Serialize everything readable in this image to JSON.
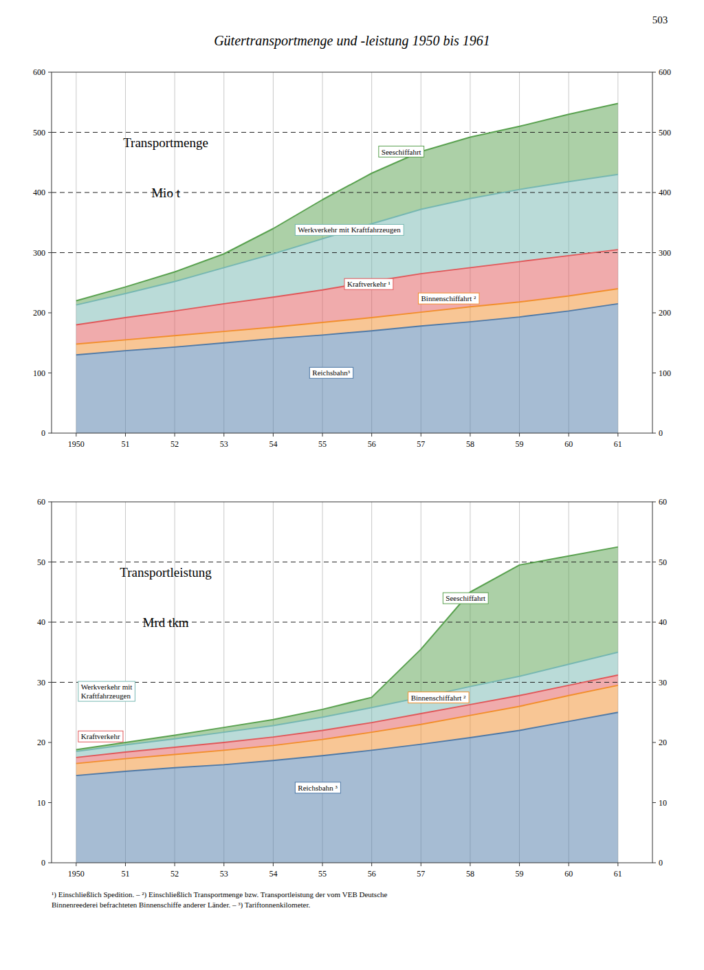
{
  "title": "Gütertransportmenge und -leistung 1950 bis 1961",
  "page_number": "503",
  "footnote": "¹) Einschließlich Spedition. – ²) Einschließlich Transportmenge bzw. Transportleistung der vom VEB Deutsche\nBinnenreederei befrachteten Binnenschiffe anderer Länder. – ³) Tariftonnenkilometer.",
  "chart_data": [
    {
      "type": "area",
      "annotations": [
        "Transportmenge",
        "Mio t"
      ],
      "x": [
        1950,
        1951,
        1952,
        1953,
        1954,
        1955,
        1956,
        1957,
        1958,
        1959,
        1960,
        1961
      ],
      "xlim": [
        1949.5,
        1961.7
      ],
      "xticks": [
        1950,
        {
          "value": 1951,
          "label": "51"
        },
        {
          "value": 1952,
          "label": "52"
        },
        {
          "value": 1953,
          "label": "53"
        },
        {
          "value": 1954,
          "label": "54"
        },
        {
          "value": 1955,
          "label": "55"
        },
        {
          "value": 1956,
          "label": "56"
        },
        {
          "value": 1957,
          "label": "57"
        },
        {
          "value": 1958,
          "label": "58"
        },
        {
          "value": 1959,
          "label": "59"
        },
        {
          "value": 1960,
          "label": "60"
        },
        {
          "value": 1961,
          "label": "61"
        }
      ],
      "ylim": [
        0,
        600
      ],
      "yticks": [
        0,
        100,
        200,
        300,
        400,
        500,
        600
      ],
      "reference_lines": [
        300,
        400,
        500
      ],
      "grid": "x",
      "series": [
        {
          "name": "Reichsbahn³",
          "values": [
            130,
            137,
            143,
            150,
            157,
            163,
            170,
            178,
            185,
            193,
            203,
            215
          ]
        },
        {
          "name": "Binnenschiffahrt ²",
          "values": [
            148,
            155,
            162,
            169,
            176,
            184,
            192,
            201,
            210,
            218,
            228,
            240
          ]
        },
        {
          "name": "Kraftverkehr ¹",
          "values": [
            180,
            192,
            203,
            215,
            226,
            238,
            252,
            265,
            275,
            285,
            295,
            305
          ]
        },
        {
          "name": "Werkverkehr mit Kraftfahrzeugen",
          "values": [
            213,
            232,
            252,
            275,
            298,
            323,
            348,
            372,
            390,
            405,
            418,
            430
          ]
        },
        {
          "name": "Seeschiffahrt",
          "values": [
            220,
            243,
            268,
            298,
            340,
            388,
            432,
            468,
            492,
            510,
            530,
            548
          ]
        }
      ]
    },
    {
      "type": "area",
      "annotations": [
        "Transportleistung",
        "Mrd tkm"
      ],
      "x": [
        1950,
        1951,
        1952,
        1953,
        1954,
        1955,
        1956,
        1957,
        1958,
        1959,
        1960,
        1961
      ],
      "xlim": [
        1949.5,
        1961.7
      ],
      "xticks": [
        1950,
        {
          "value": 1951,
          "label": "51"
        },
        {
          "value": 1952,
          "label": "52"
        },
        {
          "value": 1953,
          "label": "53"
        },
        {
          "value": 1954,
          "label": "54"
        },
        {
          "value": 1955,
          "label": "55"
        },
        {
          "value": 1956,
          "label": "56"
        },
        {
          "value": 1957,
          "label": "57"
        },
        {
          "value": 1958,
          "label": "58"
        },
        {
          "value": 1959,
          "label": "59"
        },
        {
          "value": 1960,
          "label": "60"
        },
        {
          "value": 1961,
          "label": "61"
        }
      ],
      "ylim": [
        0,
        60
      ],
      "yticks": [
        0,
        10,
        20,
        30,
        40,
        50,
        60
      ],
      "reference_lines": [
        30,
        40,
        50
      ],
      "grid": "x",
      "series": [
        {
          "name": "Reichsbahn ³",
          "values": [
            14.5,
            15.2,
            15.8,
            16.3,
            17.0,
            17.8,
            18.7,
            19.7,
            20.8,
            22.0,
            23.5,
            25.0
          ]
        },
        {
          "name": "Binnenschiffahrt ²",
          "values": [
            16.5,
            17.3,
            18.0,
            18.7,
            19.5,
            20.5,
            21.7,
            23.0,
            24.5,
            26.0,
            27.8,
            29.5
          ]
        },
        {
          "name": "Kraftverkehr",
          "values": [
            17.5,
            18.4,
            19.2,
            20.0,
            20.9,
            22.0,
            23.3,
            24.8,
            26.3,
            27.8,
            29.5,
            31.2
          ]
        },
        {
          "name": "Werkverkehr mit\nKraftfahrzeugen",
          "values": [
            18.5,
            19.6,
            20.6,
            21.7,
            22.8,
            24.2,
            25.8,
            27.5,
            29.3,
            31.0,
            33.0,
            35.0
          ]
        },
        {
          "name": "Seeschiffahrt",
          "values": [
            18.8,
            20.0,
            21.2,
            22.5,
            23.8,
            25.5,
            27.5,
            35.5,
            45.0,
            49.5,
            51.0,
            52.5
          ]
        }
      ]
    }
  ]
}
